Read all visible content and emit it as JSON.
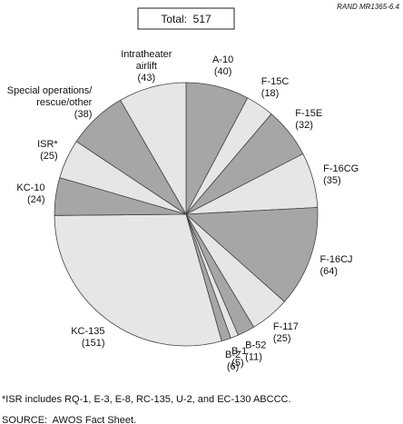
{
  "chart_data": {
    "type": "pie",
    "header": "RAND MR1365-6.4",
    "title": "Total:  517",
    "categories": [
      "A-10",
      "F-15C",
      "F-15E",
      "F-16CG",
      "F-16CJ",
      "F-117",
      "B-52",
      "B-1",
      "B-2",
      "KC-135",
      "KC-10",
      "ISR*",
      "Special operations/\nrescue/other",
      "Intratheater\nairlift"
    ],
    "values": [
      40,
      18,
      32,
      35,
      64,
      25,
      11,
      5,
      6,
      151,
      24,
      25,
      38,
      43
    ],
    "value_labels": [
      "(40)",
      "(18)",
      "(32)",
      "(35)",
      "(64)",
      "(25)",
      "(11)",
      "(5)",
      "(6)",
      "(151)",
      "(24)",
      "(25)",
      "(38)",
      "(43)"
    ],
    "colors": [
      "#a6a6a6",
      "#e6e6e6"
    ],
    "footnotes": [
      "*ISR includes RQ-1, E-3, E-8, RC-135, U-2, and EC-130 ABCCC.",
      "SOURCE:  AWOS Fact Sheet."
    ]
  }
}
